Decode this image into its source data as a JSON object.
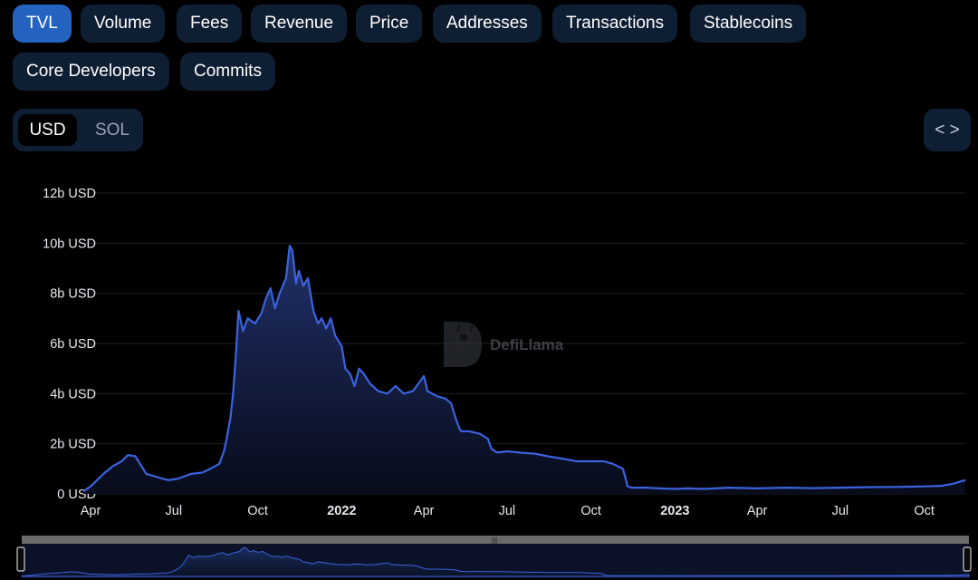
{
  "tabs": [
    {
      "label": "TVL",
      "active": true
    },
    {
      "label": "Volume"
    },
    {
      "label": "Fees"
    },
    {
      "label": "Revenue"
    },
    {
      "label": "Price"
    },
    {
      "label": "Addresses"
    },
    {
      "label": "Transactions"
    },
    {
      "label": "Stablecoins"
    },
    {
      "label": "Core Developers"
    },
    {
      "label": "Commits"
    }
  ],
  "denomination": {
    "selected": "USD",
    "other": "SOL"
  },
  "embed_icon": "code-brackets-icon",
  "watermark": "DefiLlama",
  "colors": {
    "line": "#3b63e0",
    "active_tab": "#2463c0",
    "tab_bg": "#0e1e33"
  },
  "chart_data": {
    "type": "area",
    "title": "",
    "xlabel": "",
    "ylabel": "",
    "ylim": [
      0,
      12
    ],
    "y_unit": "b USD",
    "y_tick_labels": [
      "0 USD",
      "2b USD",
      "4b USD",
      "6b USD",
      "8b USD",
      "10b USD",
      "12b USD"
    ],
    "x_tick_labels": [
      "Apr",
      "Jul",
      "Oct",
      "2022",
      "Apr",
      "Jul",
      "Oct",
      "2023",
      "Apr",
      "Jul",
      "Oct"
    ],
    "x_tick_bold": [
      false,
      false,
      false,
      true,
      false,
      false,
      false,
      true,
      false,
      false,
      false
    ],
    "grid": true,
    "legend": "none",
    "series": [
      {
        "x": [
          "2021-03-24",
          "2021-04-01",
          "2021-04-15",
          "2021-04-25",
          "2021-05-05",
          "2021-05-12",
          "2021-05-20",
          "2021-06-01",
          "2021-06-15",
          "2021-06-25",
          "2021-07-05",
          "2021-07-20",
          "2021-08-01",
          "2021-08-10",
          "2021-08-20",
          "2021-08-25",
          "2021-08-28",
          "2021-09-01",
          "2021-09-04",
          "2021-09-07",
          "2021-09-10",
          "2021-09-15",
          "2021-09-20",
          "2021-09-28",
          "2021-10-05",
          "2021-10-10",
          "2021-10-15",
          "2021-10-20",
          "2021-10-25",
          "2021-11-01",
          "2021-11-05",
          "2021-11-08",
          "2021-11-12",
          "2021-11-15",
          "2021-11-20",
          "2021-11-25",
          "2021-12-01",
          "2021-12-06",
          "2021-12-10",
          "2021-12-15",
          "2021-12-20",
          "2021-12-25",
          "2022-01-01",
          "2022-01-05",
          "2022-01-10",
          "2022-01-15",
          "2022-01-20",
          "2022-01-25",
          "2022-02-01",
          "2022-02-10",
          "2022-02-20",
          "2022-03-01",
          "2022-03-10",
          "2022-03-20",
          "2022-04-01",
          "2022-04-05",
          "2022-04-10",
          "2022-04-15",
          "2022-04-25",
          "2022-05-01",
          "2022-05-05",
          "2022-05-10",
          "2022-05-12",
          "2022-05-20",
          "2022-06-01",
          "2022-06-10",
          "2022-06-14",
          "2022-06-20",
          "2022-07-01",
          "2022-07-15",
          "2022-08-01",
          "2022-08-15",
          "2022-09-01",
          "2022-09-15",
          "2022-10-01",
          "2022-10-15",
          "2022-10-25",
          "2022-11-05",
          "2022-11-08",
          "2022-11-10",
          "2022-11-15",
          "2022-12-01",
          "2022-12-15",
          "2023-01-01",
          "2023-01-15",
          "2023-02-01",
          "2023-03-01",
          "2023-04-01",
          "2023-05-01",
          "2023-06-01",
          "2023-07-01",
          "2023-08-01",
          "2023-09-01",
          "2023-10-01",
          "2023-10-20",
          "2023-11-01",
          "2023-11-10",
          "2023-11-15"
        ],
        "y": [
          0.1,
          0.3,
          0.8,
          1.1,
          1.3,
          1.55,
          1.5,
          0.8,
          0.65,
          0.55,
          0.6,
          0.8,
          0.85,
          1.0,
          1.2,
          1.7,
          2.2,
          3.0,
          4.0,
          5.5,
          7.3,
          6.5,
          7.0,
          6.8,
          7.2,
          7.8,
          8.2,
          7.4,
          8.0,
          8.6,
          9.9,
          9.7,
          8.4,
          8.9,
          8.3,
          8.6,
          7.3,
          6.8,
          7.0,
          6.6,
          7.0,
          6.3,
          5.9,
          5.0,
          4.8,
          4.3,
          5.0,
          4.8,
          4.4,
          4.1,
          4.0,
          4.3,
          4.0,
          4.1,
          4.7,
          4.1,
          4.0,
          3.9,
          3.8,
          3.6,
          3.1,
          2.6,
          2.5,
          2.5,
          2.4,
          2.2,
          1.8,
          1.65,
          1.7,
          1.65,
          1.6,
          1.5,
          1.4,
          1.3,
          1.3,
          1.3,
          1.2,
          1.0,
          0.6,
          0.3,
          0.25,
          0.25,
          0.22,
          0.2,
          0.22,
          0.2,
          0.25,
          0.22,
          0.25,
          0.23,
          0.25,
          0.27,
          0.28,
          0.3,
          0.32,
          0.4,
          0.5,
          0.55
        ]
      }
    ]
  }
}
